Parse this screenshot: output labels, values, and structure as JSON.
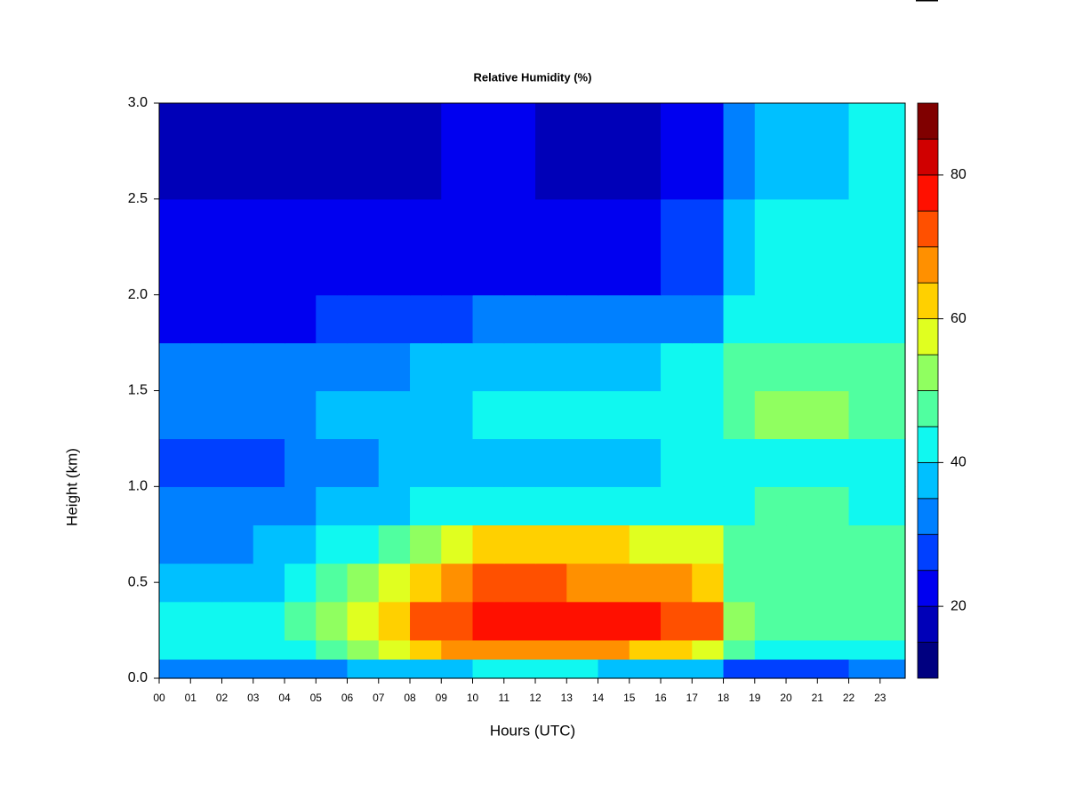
{
  "chart_data": {
    "type": "heatmap",
    "title": "Relative Humidity (%)",
    "xlabel": "Hours (UTC)",
    "ylabel": "Height (km)",
    "xlim": [
      0,
      23.8
    ],
    "ylim": [
      0,
      3
    ],
    "xticks": [
      {
        "value": 0,
        "label": "00"
      },
      {
        "value": 1,
        "label": "01"
      },
      {
        "value": 2,
        "label": "02"
      },
      {
        "value": 3,
        "label": "03"
      },
      {
        "value": 4,
        "label": "04"
      },
      {
        "value": 5,
        "label": "05"
      },
      {
        "value": 6,
        "label": "06"
      },
      {
        "value": 7,
        "label": "07"
      },
      {
        "value": 8,
        "label": "08"
      },
      {
        "value": 9,
        "label": "09"
      },
      10,
      11,
      12,
      13,
      14,
      15,
      16,
      17,
      18,
      19,
      20,
      21,
      22,
      23
    ],
    "yticks": [
      {
        "value": 0,
        "label": "0.0"
      },
      {
        "value": 0.5,
        "label": "0.5"
      },
      {
        "value": 1,
        "label": "1.0"
      },
      {
        "value": 1.5,
        "label": "1.5"
      },
      {
        "value": 2,
        "label": "2.0"
      },
      {
        "value": 2.5,
        "label": "2.5"
      },
      {
        "value": 3,
        "label": "3.0"
      }
    ],
    "x_bins": [
      0,
      1,
      2,
      3,
      4,
      5,
      6,
      7,
      8,
      9,
      10,
      11,
      12,
      13,
      14,
      15,
      16,
      17,
      18,
      19,
      20,
      21,
      22,
      23,
      23.8
    ],
    "y_bins": [
      0,
      0.1,
      0.2,
      0.4,
      0.6,
      0.8,
      1.0,
      1.25,
      1.5,
      1.75,
      2.0,
      2.5,
      3.0
    ],
    "values": [
      [
        30,
        30,
        30,
        30,
        30,
        32,
        35,
        35,
        38,
        38,
        40,
        40,
        40,
        40,
        38,
        38,
        35,
        35,
        25,
        25,
        25,
        27,
        30,
        30
      ],
      [
        40,
        40,
        40,
        40,
        42,
        48,
        50,
        55,
        62,
        65,
        68,
        68,
        68,
        66,
        65,
        63,
        60,
        58,
        45,
        42,
        42,
        43,
        44,
        44
      ],
      [
        42,
        42,
        42,
        43,
        45,
        53,
        57,
        63,
        70,
        73,
        77,
        78,
        78,
        76,
        76,
        75,
        72,
        70,
        50,
        48,
        48,
        48,
        48,
        47
      ],
      [
        38,
        38,
        38,
        39,
        42,
        47,
        50,
        55,
        63,
        66,
        70,
        70,
        70,
        69,
        68,
        67,
        65,
        63,
        47,
        48,
        48,
        48,
        47,
        46
      ],
      [
        33,
        33,
        34,
        35,
        37,
        40,
        43,
        47,
        53,
        56,
        60,
        60,
        60,
        60,
        60,
        59,
        58,
        57,
        45,
        47,
        47,
        47,
        45,
        45
      ],
      [
        30,
        30,
        30,
        31,
        33,
        35,
        36,
        38,
        40,
        41,
        42,
        42,
        42,
        42,
        42,
        42,
        42,
        42,
        42,
        45,
        45,
        45,
        44,
        44
      ],
      [
        28,
        28,
        28,
        29,
        31,
        33,
        34,
        35,
        37,
        37,
        38,
        38,
        38,
        38,
        38,
        38,
        40,
        40,
        42,
        44,
        44,
        44,
        43,
        43
      ],
      [
        32,
        32,
        32,
        33,
        34,
        35,
        36,
        37,
        38,
        39,
        40,
        40,
        40,
        41,
        42,
        42,
        44,
        44,
        48,
        50,
        50,
        50,
        48,
        48
      ],
      [
        30,
        30,
        30,
        31,
        32,
        33,
        33,
        34,
        35,
        36,
        37,
        37,
        37,
        37,
        38,
        38,
        40,
        40,
        45,
        48,
        48,
        48,
        45,
        45
      ],
      [
        22,
        22,
        22,
        23,
        24,
        25,
        26,
        27,
        28,
        29,
        30,
        30,
        30,
        30,
        32,
        32,
        34,
        34,
        40,
        44,
        44,
        44,
        42,
        42
      ],
      [
        20,
        20,
        20,
        20,
        20,
        20,
        21,
        22,
        22,
        23,
        23,
        23,
        22,
        22,
        22,
        22,
        25,
        25,
        35,
        40,
        40,
        40,
        40,
        40
      ],
      [
        18,
        18,
        17,
        17,
        17,
        17,
        17,
        18,
        19,
        20,
        20,
        20,
        19,
        18,
        18,
        18,
        22,
        22,
        30,
        38,
        38,
        38,
        40,
        40
      ]
    ],
    "levels": [
      10,
      15,
      20,
      25,
      30,
      35,
      40,
      45,
      50,
      55,
      60,
      65,
      70,
      75,
      80,
      85,
      90
    ],
    "colors": [
      "#000080",
      "#0000B8",
      "#0000F0",
      "#0040FF",
      "#0080FF",
      "#00C0FF",
      "#10F8F0",
      "#50FFA0",
      "#90FF60",
      "#E0FF20",
      "#FFD000",
      "#FF9000",
      "#FF5000",
      "#FF1000",
      "#D00000",
      "#800000"
    ],
    "colorbar_ticks": [
      20,
      40,
      60,
      80
    ]
  }
}
